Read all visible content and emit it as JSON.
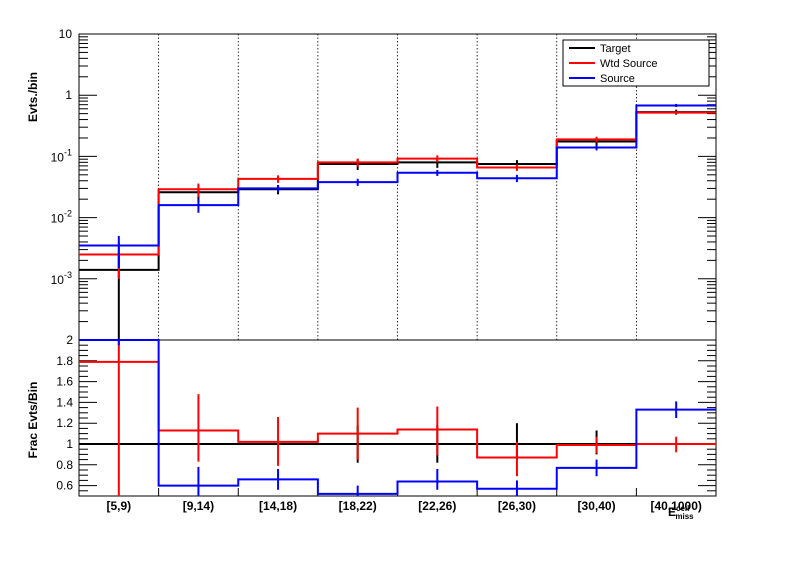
{
  "chart_data": [
    {
      "type": "line",
      "subtype": "step-histogram",
      "ylabel": "Evts./bin",
      "yscale": "log",
      "ylim": [
        0.0001,
        10
      ],
      "y_tick_labels": [
        "10⁻³",
        "10⁻²",
        "10⁻¹",
        "1",
        "10"
      ],
      "categories": [
        "[5,9)",
        "[9,14)",
        "[14,18)",
        "[18,22)",
        "[22,26)",
        "[26,30)",
        "[30,40)",
        "[40,1000)"
      ],
      "legend_position": "top-right",
      "series": [
        {
          "name": "Target",
          "color": "#000000",
          "values": [
            0.0014,
            0.026,
            0.029,
            0.075,
            0.08,
            0.075,
            0.175,
            0.53
          ],
          "err_low": [
            0.0013,
            0.008,
            0.005,
            0.015,
            0.015,
            0.012,
            0.025,
            0.05
          ],
          "err_high": [
            0.0013,
            0.008,
            0.005,
            0.015,
            0.015,
            0.012,
            0.025,
            0.05
          ]
        },
        {
          "name": "Wtd Source",
          "color": "#ff0000",
          "values": [
            0.0025,
            0.029,
            0.043,
            0.08,
            0.092,
            0.066,
            0.19,
            0.52
          ],
          "err_low": [
            0.0015,
            0.007,
            0.006,
            0.012,
            0.012,
            0.008,
            0.02,
            0.03
          ],
          "err_high": [
            0.0015,
            0.007,
            0.006,
            0.012,
            0.012,
            0.008,
            0.02,
            0.03
          ]
        },
        {
          "name": "Source",
          "color": "#0000ff",
          "values": [
            0.0035,
            0.016,
            0.03,
            0.038,
            0.054,
            0.044,
            0.14,
            0.68
          ],
          "err_low": [
            0.002,
            0.004,
            0.004,
            0.005,
            0.006,
            0.006,
            0.015,
            0.04
          ],
          "err_high": [
            0.0015,
            0.004,
            0.004,
            0.005,
            0.006,
            0.006,
            0.015,
            0.04
          ]
        }
      ]
    },
    {
      "type": "line",
      "subtype": "step-histogram",
      "ylabel": "Frac Evts/Bin",
      "ylim": [
        0.5,
        2.0
      ],
      "y_ticks": [
        0.6,
        0.8,
        1,
        1.2,
        1.4,
        1.6,
        1.8,
        2
      ],
      "xlabel": "E_miss^cell",
      "categories": [
        "[5,9)",
        "[9,14)",
        "[14,18)",
        "[18,22)",
        "[22,26)",
        "[26,30)",
        "[30,40)",
        "[40,1000)"
      ],
      "series": [
        {
          "name": "Target",
          "color": "#000000",
          "values": [
            1.0,
            1.0,
            1.0,
            1.0,
            1.0,
            1.0,
            1.0,
            1.0
          ],
          "err_low": [
            0,
            0,
            0,
            0.18,
            0.18,
            0.15,
            0.1,
            0
          ],
          "err_high": [
            0,
            0,
            0,
            0.18,
            0.18,
            0.2,
            0.13,
            0
          ]
        },
        {
          "name": "Wtd Source",
          "color": "#ff0000",
          "values": [
            1.79,
            1.13,
            1.02,
            1.1,
            1.14,
            0.87,
            0.99,
            1.0
          ],
          "err_low": [
            1.3,
            0.3,
            0.23,
            0.25,
            0.25,
            0.18,
            0.08,
            0.08
          ],
          "err_high": [
            1.3,
            0.35,
            0.24,
            0.25,
            0.22,
            0.15,
            0.08,
            0.07
          ]
        },
        {
          "name": "Source",
          "color": "#0000ff",
          "values": [
            2.05,
            0.6,
            0.66,
            0.52,
            0.64,
            0.57,
            0.77,
            1.33
          ],
          "err_low": [
            0.1,
            0.1,
            0.1,
            0.08,
            0.08,
            0.08,
            0.08,
            0.08
          ],
          "err_high": [
            0.1,
            0.18,
            0.1,
            0.08,
            0.12,
            0.08,
            0.08,
            0.08
          ]
        }
      ]
    }
  ]
}
